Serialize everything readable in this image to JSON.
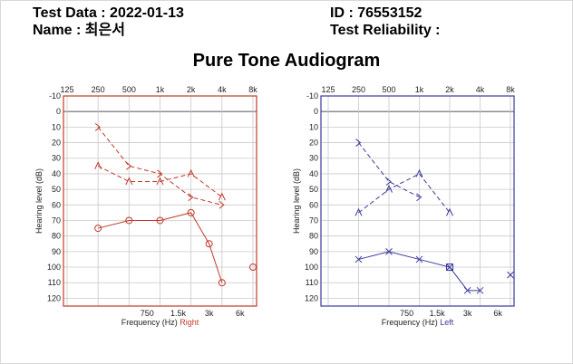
{
  "header": {
    "test_data_label": "Test Data : 2022-01-13",
    "name_label": "Name : 최은서",
    "id_label": "ID : 76553152",
    "reliability_label": "Test Reliability :"
  },
  "title": "Pure Tone Audiogram",
  "colors": {
    "right": "#c0392b",
    "left": "#3b3b9e",
    "grid": "#c8c8c8"
  },
  "chart_data": [
    {
      "type": "line",
      "side": "right",
      "title": "",
      "top_ticks": [
        "125",
        "250",
        "500",
        "1k",
        "2k",
        "4k",
        "8k"
      ],
      "bottom_ticks": [
        "750",
        "1.5k",
        "3k",
        "6k"
      ],
      "y_ticks": [
        -10,
        0,
        10,
        20,
        30,
        40,
        50,
        60,
        70,
        80,
        90,
        100,
        110,
        120
      ],
      "ylim": [
        -10,
        125
      ],
      "y_scale_note": "inverted",
      "ylabel": "Hearing level (dB)",
      "xlabel": "Frequency (Hz)",
      "xlabel_side": "Right",
      "series": [
        {
          "marker": "circle",
          "style": "solid",
          "points": [
            [
              250,
              75
            ],
            [
              500,
              70
            ],
            [
              1000,
              70
            ],
            [
              2000,
              65
            ],
            [
              3000,
              85
            ],
            [
              4000,
              110
            ]
          ]
        },
        {
          "marker": "triangle",
          "style": "dashed",
          "points": [
            [
              250,
              35
            ],
            [
              500,
              45
            ],
            [
              1000,
              45
            ],
            [
              2000,
              40
            ],
            [
              4000,
              55
            ]
          ]
        },
        {
          "marker": "angle-bracket",
          "style": "dashed",
          "points": [
            [
              250,
              10
            ],
            [
              500,
              35
            ],
            [
              1000,
              40
            ],
            [
              2000,
              55
            ],
            [
              4000,
              60
            ]
          ]
        }
      ],
      "extra_marks": [
        {
          "marker": "circle",
          "x": 8000,
          "y": 100
        }
      ]
    },
    {
      "type": "line",
      "side": "left",
      "title": "",
      "top_ticks": [
        "125",
        "250",
        "500",
        "1k",
        "2k",
        "4k",
        "8k"
      ],
      "bottom_ticks": [
        "750",
        "1.5k",
        "3k",
        "6k"
      ],
      "y_ticks": [
        -10,
        0,
        10,
        20,
        30,
        40,
        50,
        60,
        70,
        80,
        90,
        100,
        110,
        120
      ],
      "ylim": [
        -10,
        125
      ],
      "y_scale_note": "inverted",
      "ylabel": "Hearing level (dB)",
      "xlabel": "Frequency (Hz)",
      "xlabel_side": "Left",
      "series": [
        {
          "marker": "cross",
          "style": "solid",
          "points": [
            [
              250,
              95
            ],
            [
              500,
              90
            ],
            [
              1000,
              95
            ],
            [
              2000,
              100
            ],
            [
              3000,
              115
            ],
            [
              4000,
              115
            ]
          ]
        },
        {
          "marker": "triangle",
          "style": "dashed",
          "points": [
            [
              250,
              65
            ],
            [
              500,
              50
            ],
            [
              1000,
              40
            ],
            [
              2000,
              65
            ]
          ]
        },
        {
          "marker": "angle-bracket",
          "style": "dashed",
          "points": [
            [
              250,
              20
            ],
            [
              500,
              45
            ],
            [
              1000,
              55
            ]
          ]
        }
      ],
      "extra_marks": [
        {
          "marker": "square",
          "x": 2000,
          "y": 100
        },
        {
          "marker": "cross",
          "x": 8000,
          "y": 105
        }
      ]
    }
  ]
}
